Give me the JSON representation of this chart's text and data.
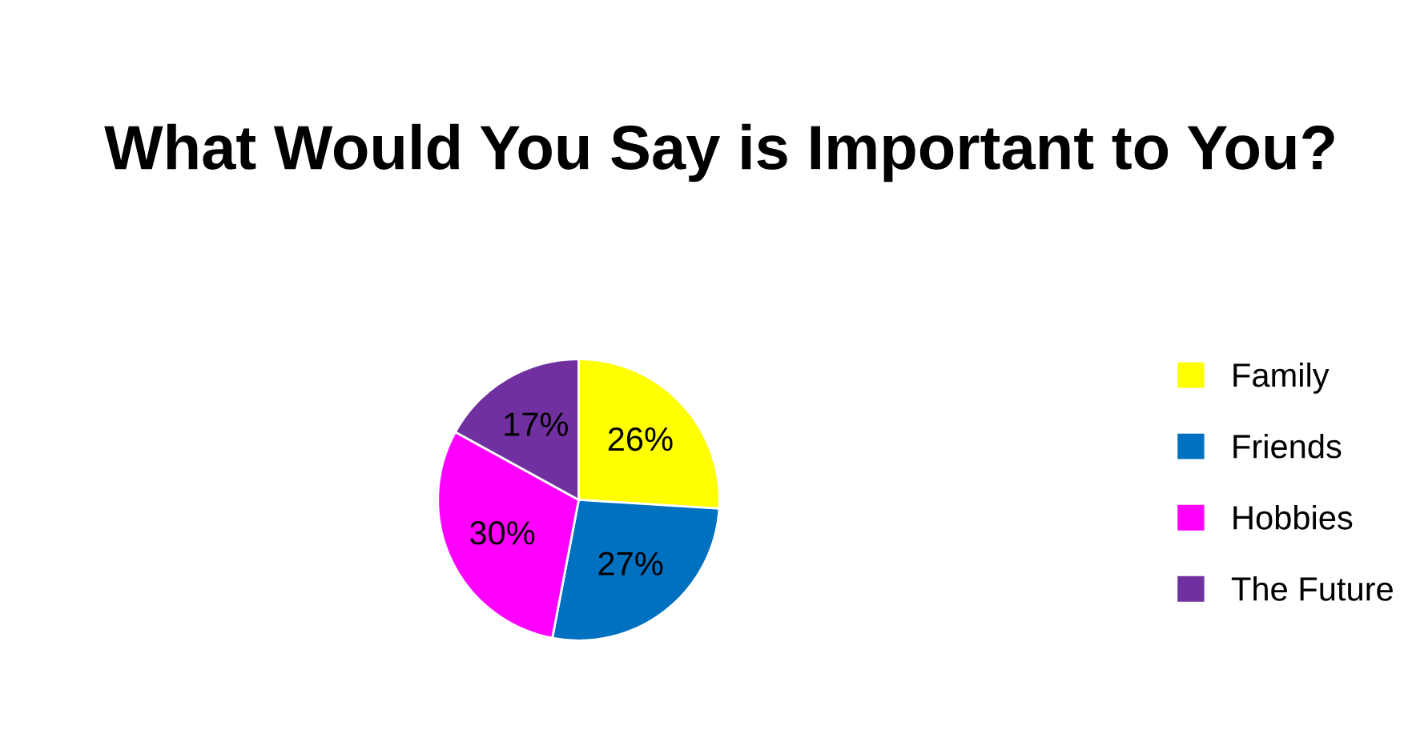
{
  "chart_data": {
    "type": "pie",
    "title": "What Would You Say is Important to You?",
    "categories": [
      "Family",
      "Friends",
      "Hobbies",
      "The Future"
    ],
    "values": [
      26,
      27,
      30,
      17
    ],
    "colors": [
      "#ffff00",
      "#0070c0",
      "#ff00ff",
      "#7030a0"
    ],
    "value_labels": [
      "26%",
      "27%",
      "30%",
      "17%"
    ],
    "legend": "right"
  }
}
